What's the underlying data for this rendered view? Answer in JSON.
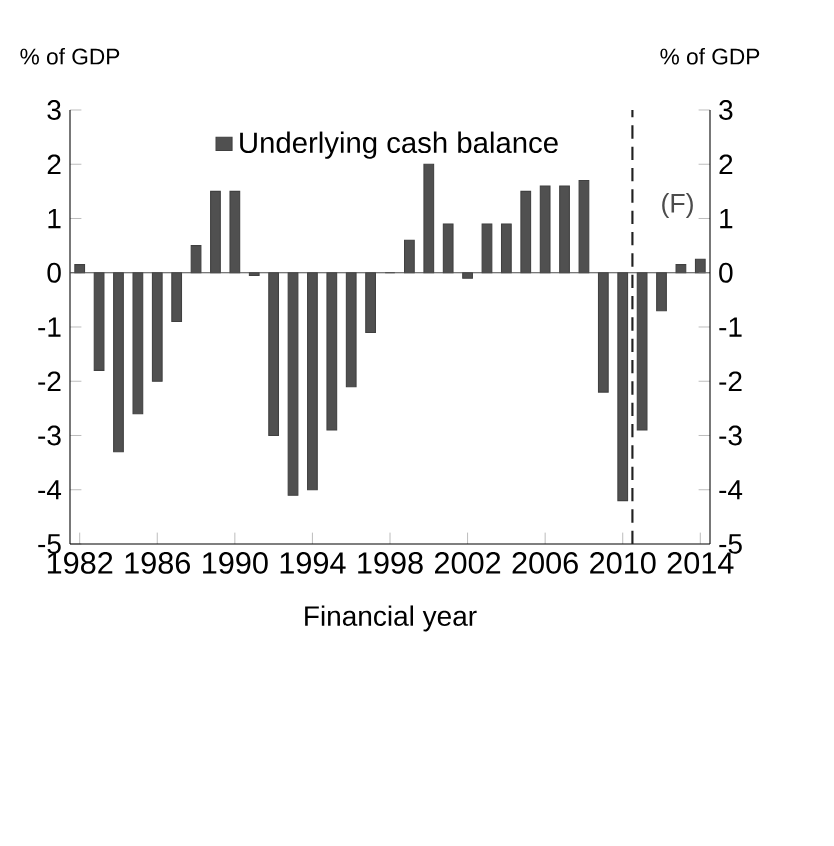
{
  "chart_data": {
    "type": "bar",
    "x": [
      1982,
      1983,
      1984,
      1985,
      1986,
      1987,
      1988,
      1989,
      1990,
      1991,
      1992,
      1993,
      1994,
      1995,
      1996,
      1997,
      1998,
      1999,
      2000,
      2001,
      2002,
      2003,
      2004,
      2005,
      2006,
      2007,
      2008,
      2009,
      2010,
      2011,
      2012,
      2013,
      2014
    ],
    "series": [
      {
        "name": "Underlying cash balance",
        "color": "#505050",
        "values": [
          0.15,
          -1.8,
          -3.3,
          -2.6,
          -2.0,
          -0.9,
          0.5,
          1.5,
          1.5,
          -0.05,
          -3.0,
          -4.1,
          -4.0,
          -2.9,
          -2.1,
          -1.1,
          0,
          0.6,
          2.0,
          0.9,
          -0.1,
          0.9,
          0.9,
          1.5,
          1.6,
          1.6,
          1.7,
          -2.2,
          -4.2,
          -2.9,
          -0.7,
          0.15,
          0.25
        ]
      }
    ],
    "xlim": [
      1981.5,
      2014.5
    ],
    "xticks": [
      1982,
      1986,
      1990,
      1994,
      1998,
      2002,
      2006,
      2010,
      2014
    ],
    "ylim": [
      -5,
      3
    ],
    "yticks": [
      -5,
      -4,
      -3,
      -2,
      -1,
      0,
      1,
      2,
      3
    ],
    "y2lim": [
      -5,
      3
    ],
    "y2ticks": [
      -5,
      -4,
      -3,
      -2,
      -1,
      0,
      1,
      2,
      3
    ],
    "ylabel": "% of GDP",
    "y2label": "% of GDP",
    "xlabel": "Financial year",
    "ref_lines": [
      {
        "axis": "x",
        "value": 2010.5,
        "line_style": "dashed",
        "color": "#202020"
      }
    ],
    "annotations": [
      "(F)"
    ],
    "legend": "top"
  }
}
